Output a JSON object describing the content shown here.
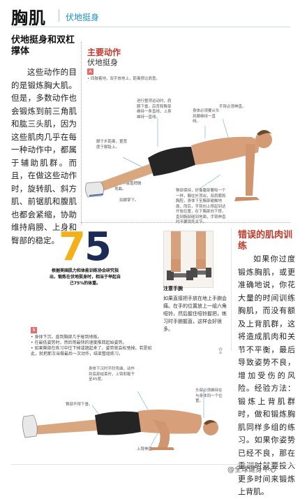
{
  "header": {
    "title": "胸肌",
    "subtitle": "伏地挺身"
  },
  "left": {
    "heading": "伏地挺身和双杠撑体",
    "body": "这些动作的目的是锻炼胸大肌。但是，多数动作也会锻炼到前三角肌和肱三头肌，因为这些肌肉几乎在每一种动作中，都属于辅助肌群。而且，在做这些动作时，旋转肌、斜方肌、前锯肌和腹肌也都会紧缩，协助维持肩膀、上身和臀部的稳定。"
  },
  "main_action": {
    "title": "主要动作",
    "subtitle": "伏地挺身",
    "badge": "A",
    "intro": "• 四肢着地，双手放地上，距离撑比肩宽。",
    "notes": [
      "进行整项运动时，肩膀下垂，后背和臀部维持一条直线，上身维持一直线。",
      "身体必须要从头到脚维持一直线。",
      "手臂必须伸直。",
      "脚于步距离，置宽度于脚趾上。",
      "运动中膝盖稍微弯曲。",
      "如脚掌下。",
      "臀部保持，好像腹部要吸一个一样，胸往外顶出，双肩膀和胸腔，身体下至胸部碰触地面，而后，手臂向上撑起到达开始位置，在下胸部向下撑，直到胸部碰到地面，手臂伸直时不要锁死关节。"
    ]
  },
  "stat": {
    "number_first": "7",
    "number_second": "5",
    "text": "根据美国肌力和体能训练协会研究指出，锻炼在伏地挺身时，相当于举起自己75%的体重。"
  },
  "caption": {
    "title": "注意手腕",
    "body": "如果直接把手放在地上手腕会痛。在手的位置放上一组六角哑铃，然后握住哑铃握把，练习时手腕握直，这样会好很多。"
  },
  "wrong": {
    "title": "错误的肌肉训练",
    "body": "如果你过度锻炼胸肌，或更准确地说，你花大量的时间训练胸肌，而没有额及上背肌群，这将造成肌肉和关节不平衡，最后导致姿势不良，增加受伤的风险。经验方法：锻炼上背肌群时，做和锻炼胸肌同样多组的练习。如果你姿势已经不良，那在重训时就要投入更多时间来锻炼上背肌。"
  },
  "section_b": {
    "badge": "B",
    "list": [
      "• 身体下沉，直到胸部几乎碰到地板。",
      "• 在最低姿势时，然后用最快的速度推回起始姿势。",
      "• 如果臀部在练习中往下掉或翘起来了，姿势就会松弛掉。若是如此，就把那次当做最后一次动作，结束整组练习。"
    ],
    "notes": [
      "身体下沉时手肘弯曲，动作到底部结束时，上臂和躯干呈45度。",
      "头部必须维持在与身体同一个位置。",
      "臀部不得下垂。",
      "上臂伸直。"
    ]
  },
  "watermark": "@全球健身中心",
  "colors": {
    "accent_red": "#c0392b",
    "accent_blue": "#1a90c8",
    "stat_gold": "#f2b11b",
    "stat_navy": "#1b2b55"
  },
  "icons": {
    "share": "share-icon"
  }
}
